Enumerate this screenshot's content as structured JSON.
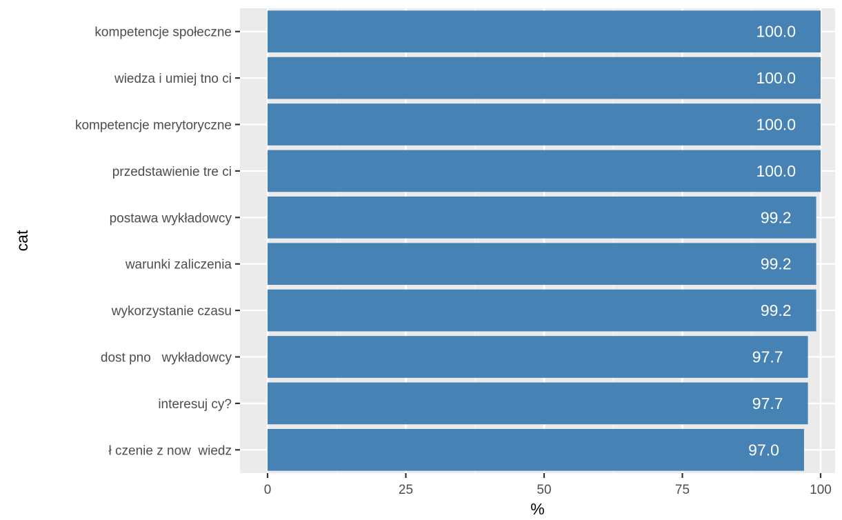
{
  "chart_data": {
    "type": "bar",
    "orientation": "horizontal",
    "xlabel": "%",
    "ylabel": "cat",
    "xlim": [
      0,
      100
    ],
    "x_ticks": [
      0,
      25,
      50,
      75,
      100
    ],
    "categories": [
      "kompetencje społeczne",
      "wiedza i umiej tno ci",
      "kompetencje merytoryczne",
      "przedstawienie tre ci",
      "postawa wykładowcy",
      "warunki zaliczenia",
      "wykorzystanie czasu",
      "dost pno   wykładowcy",
      "interesuj cy?",
      "ł czenie z now  wiedz"
    ],
    "values": [
      100,
      100,
      100,
      100,
      99.2,
      99.2,
      99.2,
      97.7,
      97.7,
      97.0
    ],
    "value_labels": [
      "100.0",
      "100.0",
      "100.0",
      "100.0",
      "99.2",
      "99.2",
      "99.2",
      "97.7",
      "97.7",
      "97.0"
    ],
    "bar_color": "#4682B4",
    "panel_color": "#EBEBEB",
    "grid": true
  }
}
